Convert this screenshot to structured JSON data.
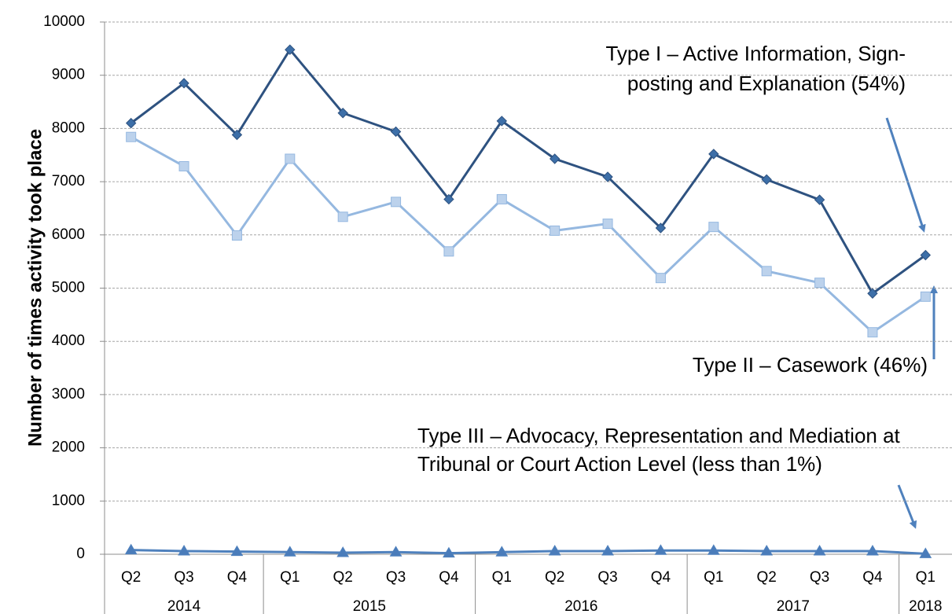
{
  "chart_data": {
    "type": "line",
    "y_axis_label": "Number of times activity took place",
    "categories": [
      "Q2",
      "Q3",
      "Q4",
      "Q1",
      "Q2",
      "Q3",
      "Q4",
      "Q1",
      "Q2",
      "Q3",
      "Q4",
      "Q1",
      "Q2",
      "Q3",
      "Q4",
      "Q1"
    ],
    "years": [
      "2014",
      "2014",
      "2014",
      "2015",
      "2015",
      "2015",
      "2015",
      "2016",
      "2016",
      "2016",
      "2016",
      "2017",
      "2017",
      "2017",
      "2017",
      "2018"
    ],
    "ylim": [
      0,
      10000
    ],
    "yticks": [
      0,
      1000,
      2000,
      3000,
      4000,
      5000,
      6000,
      7000,
      8000,
      9000,
      10000
    ],
    "grid": true,
    "series": [
      {
        "label_lines": [
          "Type I – Active Information, Sign-",
          "posting and Explanation (54%)"
        ],
        "color": "#2e5280",
        "marker": "diamond",
        "marker_color": "#3d6fa8",
        "values": [
          8100,
          8850,
          7880,
          9480,
          8290,
          7940,
          6670,
          8140,
          7430,
          7090,
          6130,
          7520,
          7040,
          6660,
          4900,
          5620
        ]
      },
      {
        "label_lines": [
          "Type II – Casework (46%)"
        ],
        "color": "#95b8e0",
        "marker": "square",
        "marker_color": "#bcd2ec",
        "values": [
          7840,
          7290,
          5990,
          7430,
          6340,
          6620,
          5690,
          6670,
          6080,
          6210,
          5190,
          6150,
          5320,
          5100,
          4170,
          4840
        ]
      },
      {
        "label_lines": [
          "Type III – Advocacy, Representation and Mediation at",
          "Tribunal or Court Action Level (less than 1%)"
        ],
        "color": "#4f81bd",
        "marker": "triangle",
        "marker_color": "#4a7cba",
        "values": [
          80,
          60,
          50,
          40,
          30,
          40,
          20,
          40,
          60,
          60,
          70,
          70,
          60,
          60,
          60,
          10
        ]
      }
    ]
  }
}
